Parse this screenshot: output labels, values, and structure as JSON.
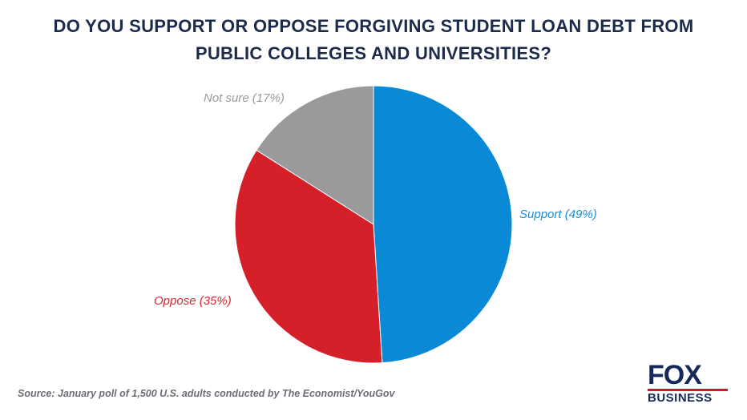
{
  "chart_data": {
    "type": "pie",
    "title": [
      "DO YOU SUPPORT OR OPPOSE FORGIVING STUDENT LOAN DEBT FROM",
      "PUBLIC COLLEGES AND UNIVERSITIES?"
    ],
    "slices": [
      {
        "name": "Support",
        "label": "Support (49%)",
        "value": 49,
        "color": "#0a8ad6",
        "label_color": "#1a8fd8"
      },
      {
        "name": "Oppose",
        "label": "Oppose (35%)",
        "value": 35,
        "color": "#d5202a",
        "label_color": "#d42a33"
      },
      {
        "name": "Not sure",
        "label": "Not sure (17%)",
        "value": 17,
        "color": "#9a9a9c",
        "label_color": "#9a9a9c"
      }
    ],
    "start_angle": "12 o'clock",
    "direction": "clockwise",
    "source": "Source: January poll of 1,500 U.S. adults conducted by The Economist/YouGov"
  },
  "logo": {
    "line1": "FOX",
    "line2": "BUSINESS"
  }
}
